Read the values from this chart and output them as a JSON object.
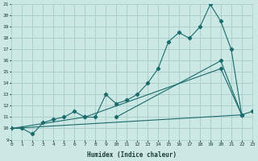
{
  "xlabel": "Humidex (Indice chaleur)",
  "bg_color": "#cce8e5",
  "line_color": "#1a6b6b",
  "grid_color": "#aacfcc",
  "main_x": [
    0,
    1,
    2,
    3,
    4,
    5,
    6,
    7,
    8,
    9,
    10,
    11,
    12,
    13,
    14,
    15,
    16,
    17,
    18,
    19,
    20,
    21,
    22,
    23
  ],
  "main_y": [
    10,
    10,
    9.5,
    10.5,
    10.8,
    11.0,
    11.5,
    11.0,
    11.0,
    13.0,
    12.2,
    12.5,
    13.0,
    14.0,
    15.3,
    17.7,
    18.5,
    18.0,
    19.0,
    21.0,
    19.5,
    17.0,
    11.2,
    11.5
  ],
  "line1_x": [
    0,
    7,
    20,
    22
  ],
  "line1_y": [
    10,
    11,
    15.3,
    11.2
  ],
  "line2_x": [
    0,
    22
  ],
  "line2_y": [
    10,
    11.2
  ],
  "line3_x": [
    10,
    20,
    22
  ],
  "line3_y": [
    11,
    16,
    11.2
  ],
  "xmin": 0,
  "xmax": 23,
  "ymin": 9,
  "ymax": 21,
  "xticks": [
    0,
    1,
    2,
    3,
    4,
    5,
    6,
    7,
    8,
    9,
    10,
    11,
    12,
    13,
    14,
    15,
    16,
    17,
    18,
    19,
    20,
    21,
    22,
    23
  ],
  "yticks": [
    9,
    10,
    11,
    12,
    13,
    14,
    15,
    16,
    17,
    18,
    19,
    20,
    21
  ]
}
